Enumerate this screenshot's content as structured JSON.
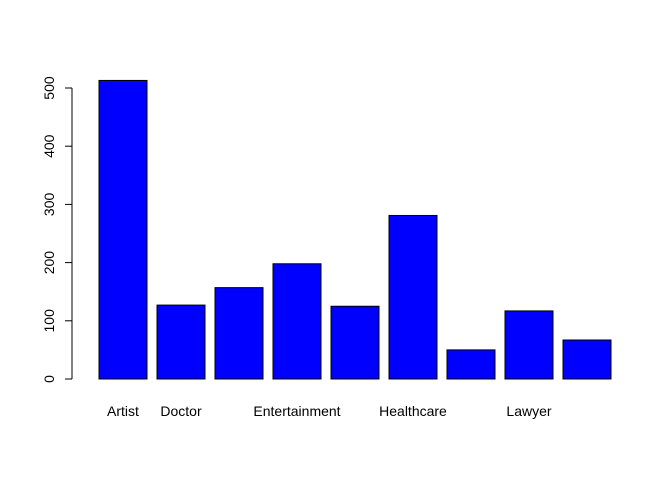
{
  "chart_data": {
    "type": "bar",
    "categories": [
      "Artist",
      "Doctor",
      "",
      "Entertainment",
      "",
      "Healthcare",
      "",
      "Lawyer",
      ""
    ],
    "values": [
      513,
      127,
      157,
      198,
      125,
      281,
      50,
      117,
      67
    ],
    "title": "",
    "xlabel": "",
    "ylabel": "",
    "ylim": [
      0,
      500
    ],
    "yticks": [
      0,
      100,
      200,
      300,
      400,
      500
    ],
    "bar_color": "#0000ff",
    "border_color": "#000000",
    "grid": false,
    "legend": "none"
  }
}
